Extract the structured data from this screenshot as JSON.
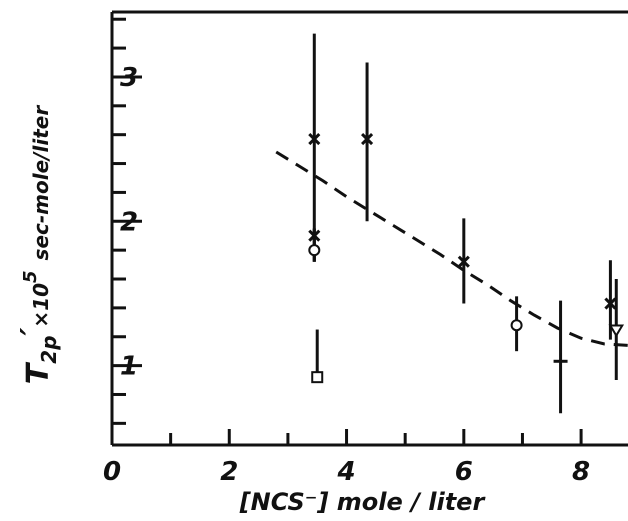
{
  "chart_data": {
    "type": "scatter",
    "title": "",
    "xlabel": "[NCS⁻]   mole / liter",
    "ylabel": {
      "symbol": "T",
      "subscript": "2p",
      "prime": "′",
      "times": "×10",
      "exponent": "5",
      "units": "sec-mole/liter"
    },
    "xlim": [
      0,
      8.8
    ],
    "ylim": [
      0.45,
      3.45
    ],
    "x_ticks": [
      0,
      2,
      4,
      6,
      8
    ],
    "x_tick_labels": [
      "0",
      "2",
      "4",
      "6",
      "8"
    ],
    "y_ticks": [
      1,
      2,
      3
    ],
    "y_tick_labels": [
      "1",
      "2",
      "3"
    ],
    "grid": false,
    "series": [
      {
        "marker": "x",
        "points": [
          {
            "x": 3.45,
            "y": 2.57,
            "ylo": 1.72,
            "yhi": 3.3
          },
          {
            "x": 3.45,
            "y": 1.9,
            "ylo": 1.72,
            "yhi": 1.95
          },
          {
            "x": 4.35,
            "y": 2.57,
            "ylo": 2.0,
            "yhi": 3.1
          },
          {
            "x": 6.0,
            "y": 1.72,
            "ylo": 1.43,
            "yhi": 2.02
          },
          {
            "x": 8.5,
            "y": 1.43,
            "ylo": 1.18,
            "yhi": 1.73
          }
        ]
      },
      {
        "marker": "circle",
        "points": [
          {
            "x": 3.45,
            "y": 1.8,
            "ylo": 1.72,
            "yhi": 1.95
          },
          {
            "x": 6.9,
            "y": 1.28,
            "ylo": 1.1,
            "yhi": 1.48
          }
        ]
      },
      {
        "marker": "square",
        "points": [
          {
            "x": 3.5,
            "y": 0.92,
            "ylo": 0.92,
            "yhi": 1.25
          }
        ]
      },
      {
        "marker": "plus",
        "points": [
          {
            "x": 7.65,
            "y": 1.03,
            "ylo": 0.67,
            "yhi": 1.45
          }
        ]
      },
      {
        "marker": "triangle",
        "points": [
          {
            "x": 8.6,
            "y": 1.25,
            "ylo": 0.9,
            "yhi": 1.6
          }
        ]
      }
    ],
    "fit_curve": {
      "style": "dashed",
      "x": [
        2.8,
        3.2,
        3.6,
        4.0,
        4.4,
        4.8,
        5.2,
        5.6,
        6.0,
        6.4,
        6.8,
        7.2,
        7.6,
        8.0,
        8.4,
        8.8
      ],
      "y": [
        2.48,
        2.38,
        2.28,
        2.17,
        2.07,
        1.97,
        1.87,
        1.77,
        1.66,
        1.56,
        1.45,
        1.35,
        1.26,
        1.19,
        1.15,
        1.14
      ]
    }
  }
}
